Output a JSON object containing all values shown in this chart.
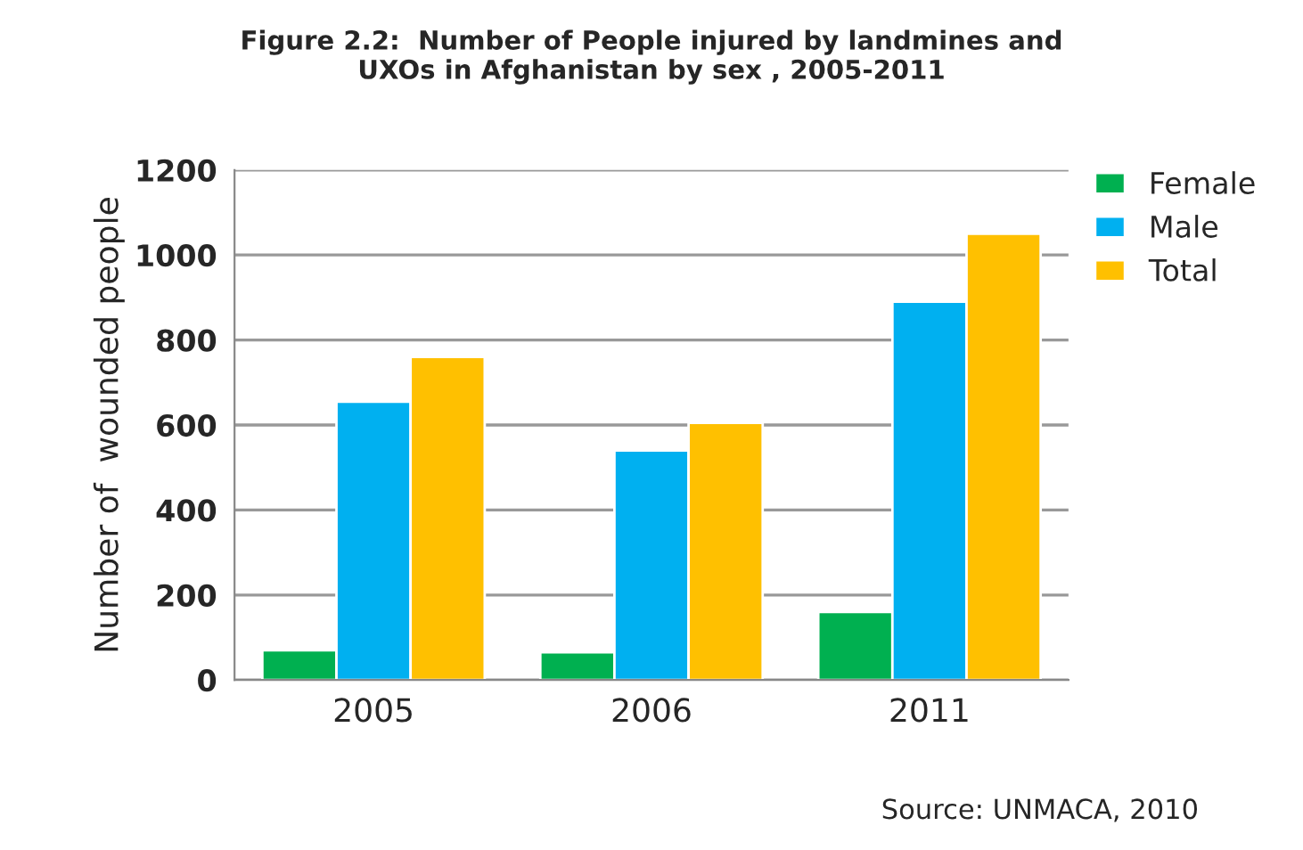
{
  "chart_data": {
    "type": "bar",
    "title": "Figure 2.2:  Number of People injured by landmines and\nUXOs in Afghanistan by sex , 2005-2011",
    "ylabel": "Number of  wounded people",
    "categories": [
      "2005",
      "2006",
      "2011"
    ],
    "series": [
      {
        "name": "Female",
        "color": "#00b050",
        "values": [
          70,
          65,
          160
        ]
      },
      {
        "name": "Male",
        "color": "#00b0f0",
        "values": [
          655,
          540,
          890
        ]
      },
      {
        "name": "Total",
        "color": "#ffc000",
        "values": [
          760,
          605,
          1050
        ]
      }
    ],
    "ylim": [
      0,
      1200
    ],
    "yticks": [
      0,
      200,
      400,
      600,
      800,
      1000,
      1200
    ],
    "grid": "y",
    "legend": "top right",
    "annotations": [
      "Source: UNMACA, 2010"
    ]
  }
}
